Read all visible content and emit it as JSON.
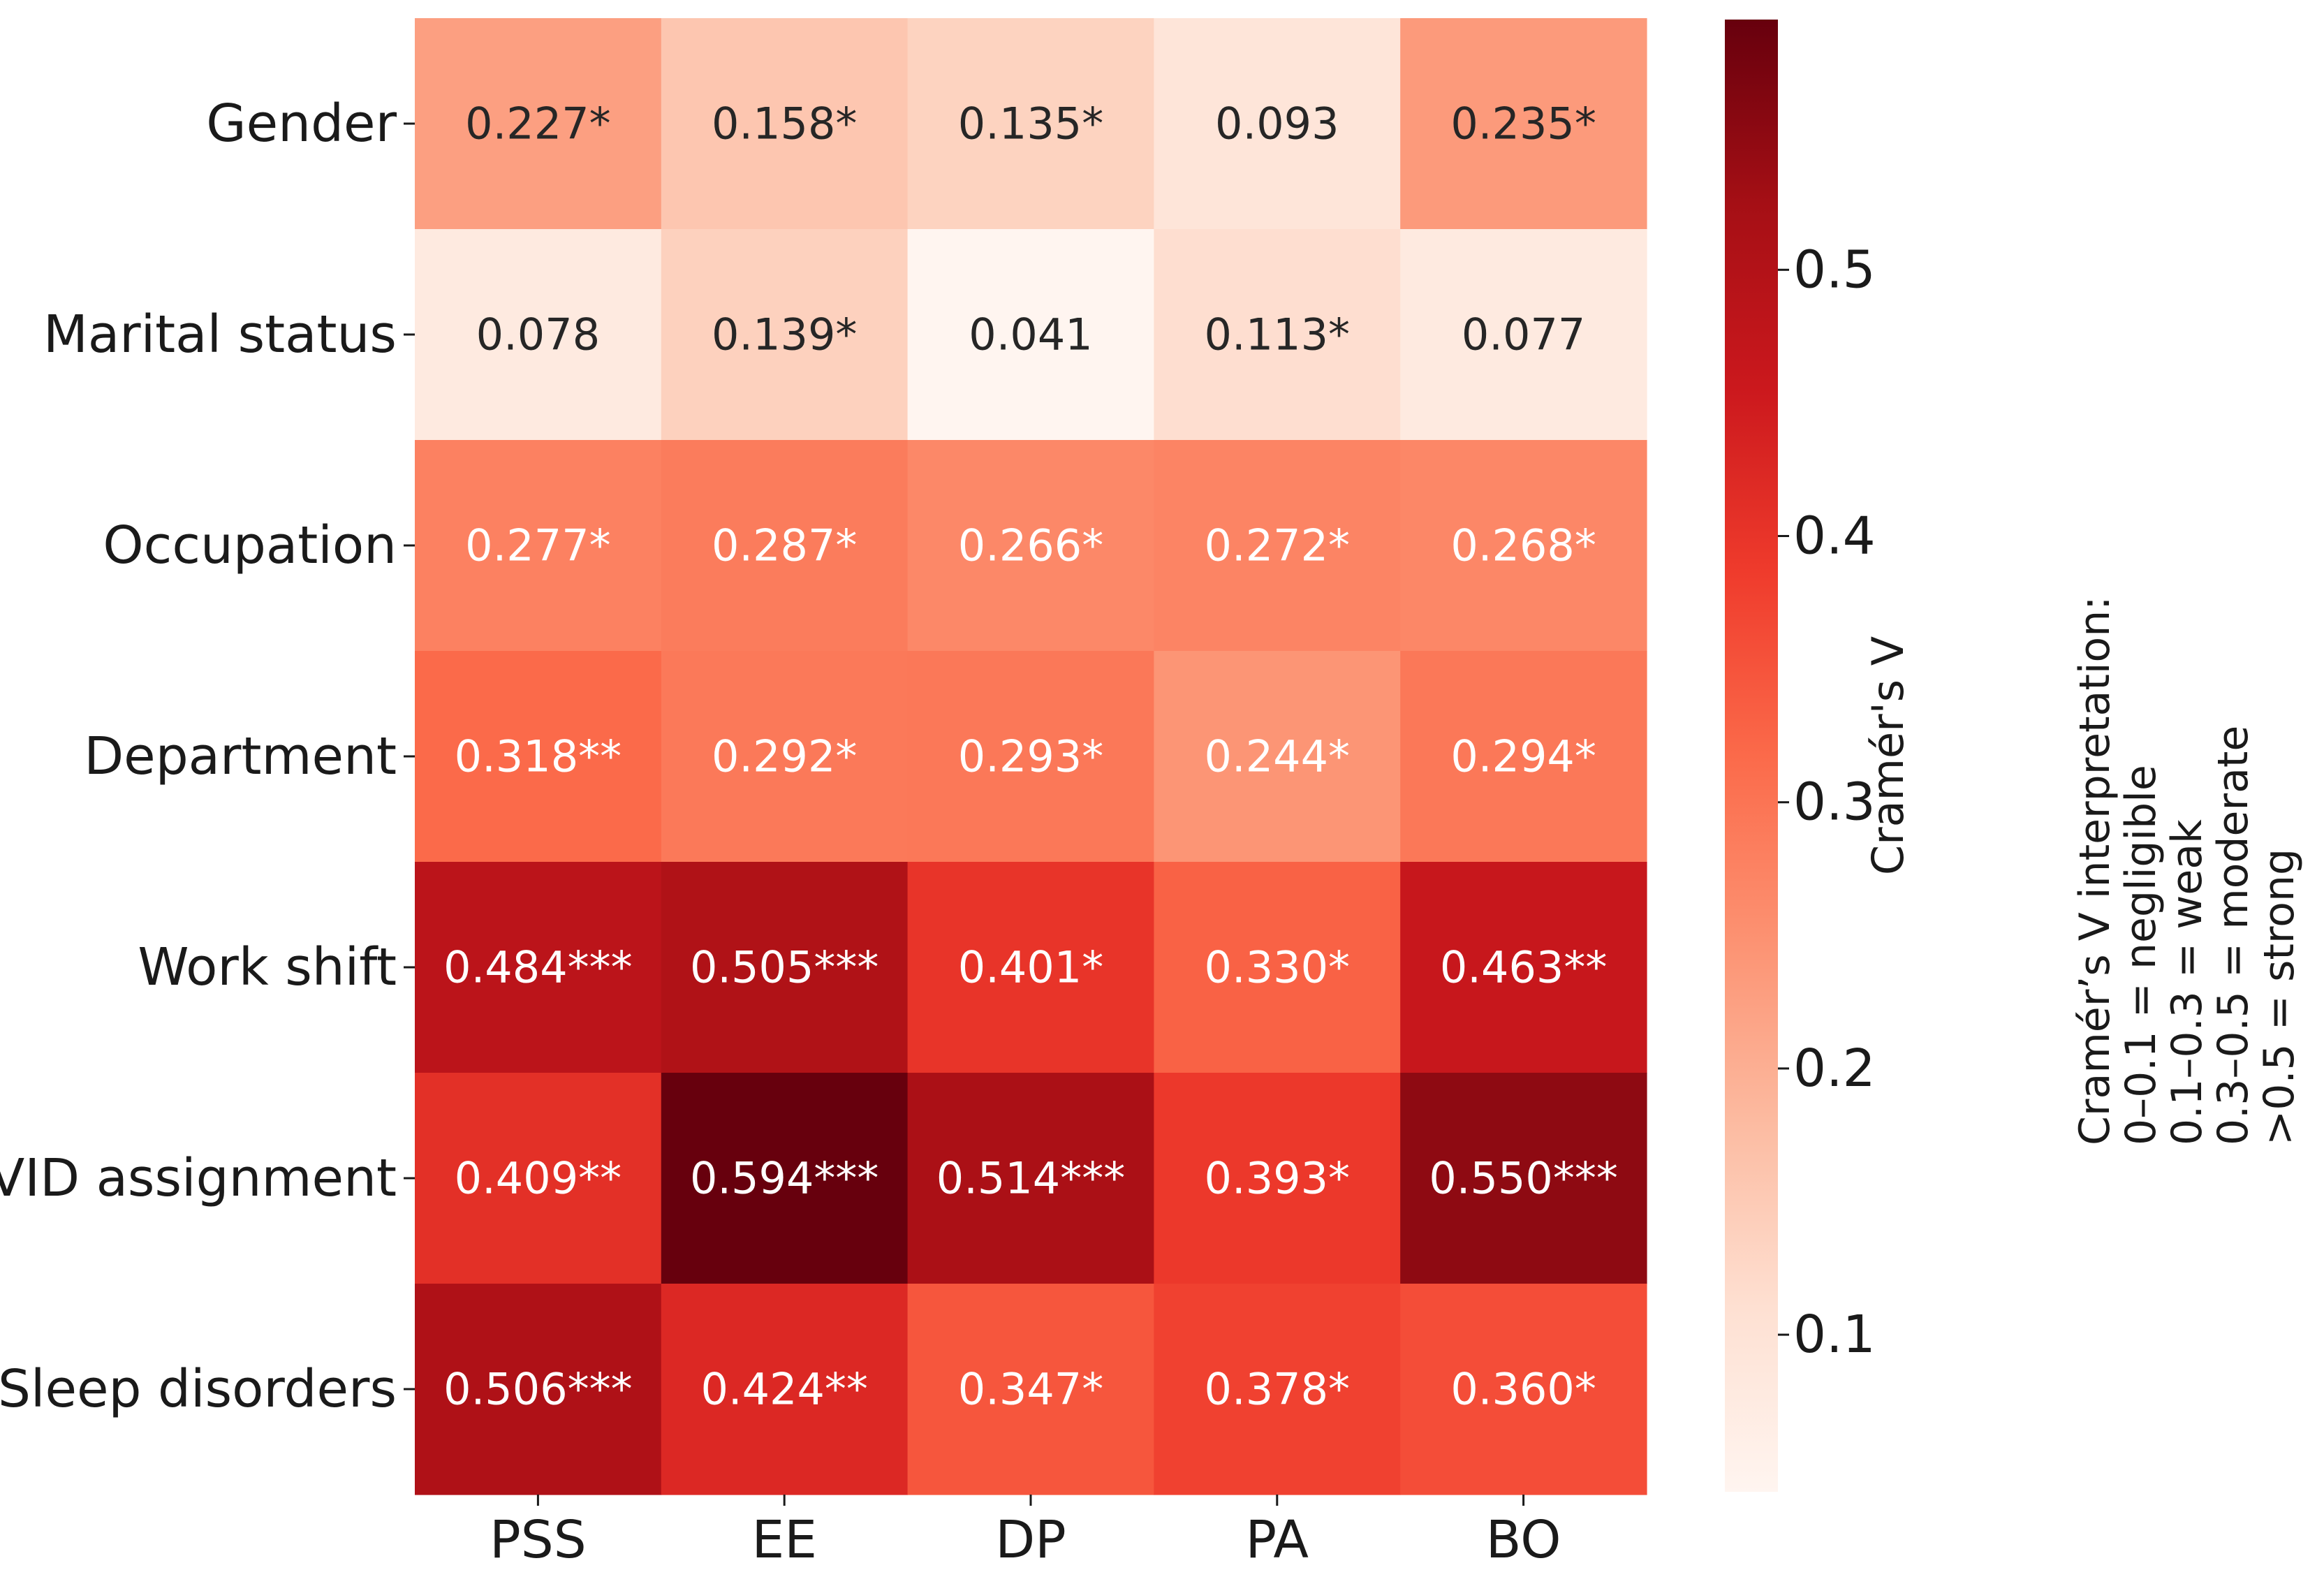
{
  "chart_data": {
    "type": "heatmap",
    "rows": [
      "Gender",
      "Marital status",
      "Occupation",
      "Department",
      "Work shift",
      "COVID assignment",
      "Sleep disorders"
    ],
    "columns": [
      "PSS",
      "EE",
      "DP",
      "PA",
      "BO"
    ],
    "values": [
      [
        0.227,
        0.158,
        0.135,
        0.093,
        0.235
      ],
      [
        0.078,
        0.139,
        0.041,
        0.113,
        0.077
      ],
      [
        0.277,
        0.287,
        0.266,
        0.272,
        0.268
      ],
      [
        0.318,
        0.292,
        0.293,
        0.244,
        0.294
      ],
      [
        0.484,
        0.505,
        0.401,
        0.33,
        0.463
      ],
      [
        0.409,
        0.594,
        0.514,
        0.393,
        0.55
      ],
      [
        0.506,
        0.424,
        0.347,
        0.378,
        0.36
      ]
    ],
    "labels": [
      [
        "0.227*",
        "0.158*",
        "0.135*",
        "0.093",
        "0.235*"
      ],
      [
        "0.078",
        "0.139*",
        "0.041",
        "0.113*",
        "0.077"
      ],
      [
        "0.277*",
        "0.287*",
        "0.266*",
        "0.272*",
        "0.268*"
      ],
      [
        "0.318**",
        "0.292*",
        "0.293*",
        "0.244*",
        "0.294*"
      ],
      [
        "0.484***",
        "0.505***",
        "0.401*",
        "0.330*",
        "0.463**"
      ],
      [
        "0.409**",
        "0.594***",
        "0.514***",
        "0.393*",
        "0.550***"
      ],
      [
        "0.506***",
        "0.424**",
        "0.347*",
        "0.378*",
        "0.360*"
      ]
    ],
    "colorbar": {
      "label": "Cramér's V",
      "range": [
        0.041,
        0.594
      ],
      "ticks": [
        0.1,
        0.2,
        0.3,
        0.4,
        0.5
      ],
      "tick_labels": [
        "0.1",
        "0.2",
        "0.3",
        "0.4",
        "0.5"
      ],
      "colormap": "Reds"
    },
    "annotation": [
      "Cramér’s V interpretation:",
      "0–0.1 = negligible",
      "0.1–0.3 = weak",
      "0.3–0.5 = moderate",
      ">0.5 = strong"
    ],
    "grid": false
  }
}
